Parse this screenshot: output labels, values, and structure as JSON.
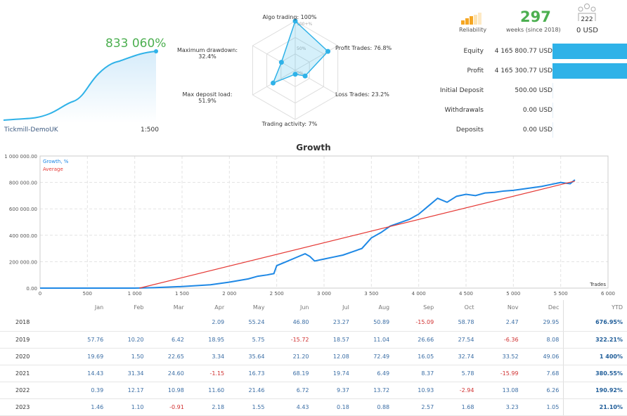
{
  "summary": {
    "growth": "833 060%",
    "broker": "Tickmill-DemoUK",
    "leverage": "1:500"
  },
  "radar": {
    "axes": [
      {
        "label": "Algo trading: 100%",
        "value": 100
      },
      {
        "label": "Profit Trades: 76.8%",
        "value": 76.8
      },
      {
        "label": "Loss Trades: 23.2%",
        "value": 23.2
      },
      {
        "label": "Trading activity: 7%",
        "value": 7
      },
      {
        "label": "Max deposit load:\n51.9%",
        "value": 51.9
      },
      {
        "label": "Maximum drawdown:\n32.4%",
        "value": 32.4
      }
    ],
    "ticks": [
      "100+%",
      "50%",
      "0%"
    ]
  },
  "header": {
    "reliability_label": "Reliability",
    "weeks": "297",
    "weeks_label": "weeks (since 2018)",
    "subscribers": "222",
    "subscribers_funds": "0 USD"
  },
  "stats": [
    {
      "label": "Equity",
      "value": "4 165 800.77 USD",
      "fill": 1
    },
    {
      "label": "Profit",
      "value": "4 165 300.77 USD",
      "fill": 1
    },
    {
      "label": "Initial Deposit",
      "value": "500.00 USD",
      "fill": 0
    },
    {
      "label": "Withdrawals",
      "value": "0.00 USD",
      "fill": 0
    },
    {
      "label": "Deposits",
      "value": "0.00 USD",
      "fill": 0
    }
  ],
  "colors": {
    "accent": "#2fb2e8",
    "green": "#4caf50",
    "negative": "#d03030",
    "average": "#e53935",
    "series": "#1e88e5"
  },
  "chart_data": {
    "type": "line",
    "title": "Growth",
    "xlabel": "Trades",
    "xlim": [
      0,
      6000
    ],
    "ylim": [
      0,
      1000000
    ],
    "grid": true,
    "legend": "top-left",
    "xticks": [
      "0",
      "500",
      "1 000",
      "1 500",
      "2 000",
      "2 500",
      "3 000",
      "3 500",
      "4 000",
      "4 500",
      "5 000",
      "5 500",
      "6 000"
    ],
    "yticks": [
      "0.00",
      "200 000.00",
      "400 000.00",
      "600 000.00",
      "800 000.00",
      "1 000 000.00"
    ],
    "series": [
      {
        "name": "Growth, %",
        "x": [
          0,
          500,
          1000,
          1200,
          1500,
          1800,
          2000,
          2200,
          2300,
          2400,
          2470,
          2500,
          2600,
          2700,
          2800,
          2850,
          2900,
          3000,
          3100,
          3200,
          3300,
          3400,
          3500,
          3600,
          3700,
          3800,
          3900,
          4000,
          4100,
          4200,
          4300,
          4400,
          4500,
          4600,
          4700,
          4800,
          4900,
          5000,
          5100,
          5200,
          5300,
          5400,
          5500,
          5600,
          5650
        ],
        "y": [
          0,
          0,
          0,
          3000,
          12000,
          25000,
          45000,
          70000,
          90000,
          100000,
          110000,
          170000,
          200000,
          230000,
          260000,
          240000,
          205000,
          220000,
          235000,
          250000,
          275000,
          300000,
          380000,
          420000,
          470000,
          495000,
          520000,
          560000,
          620000,
          680000,
          650000,
          695000,
          710000,
          700000,
          720000,
          725000,
          735000,
          740000,
          750000,
          760000,
          770000,
          785000,
          800000,
          790000,
          820000
        ]
      },
      {
        "name": "Average",
        "x": [
          1050,
          5650
        ],
        "y": [
          0,
          810000
        ]
      }
    ]
  },
  "table": {
    "headers": [
      "",
      "Jan",
      "Feb",
      "Mar",
      "Apr",
      "May",
      "Jun",
      "Jul",
      "Aug",
      "Sep",
      "Oct",
      "Nov",
      "Dec",
      "YTD"
    ],
    "rows": [
      [
        "2018",
        "",
        "",
        "",
        "2.09",
        "55.24",
        "46.80",
        "23.27",
        "50.89",
        "-15.09",
        "58.78",
        "2.47",
        "29.95",
        "676.95%"
      ],
      [
        "2019",
        "57.76",
        "10.20",
        "6.42",
        "18.95",
        "5.75",
        "-15.72",
        "18.57",
        "11.04",
        "26.66",
        "27.54",
        "-6.36",
        "8.08",
        "322.21%"
      ],
      [
        "2020",
        "19.69",
        "1.50",
        "22.65",
        "3.34",
        "35.64",
        "21.20",
        "12.08",
        "72.49",
        "16.05",
        "32.74",
        "33.52",
        "49.06",
        "1 400%"
      ],
      [
        "2021",
        "14.43",
        "31.34",
        "24.60",
        "-1.15",
        "16.73",
        "68.19",
        "19.74",
        "6.49",
        "8.37",
        "5.78",
        "-15.99",
        "7.68",
        "380.55%"
      ],
      [
        "2022",
        "0.39",
        "12.17",
        "10.98",
        "11.60",
        "21.46",
        "6.72",
        "9.37",
        "13.72",
        "10.93",
        "-2.94",
        "13.08",
        "6.26",
        "190.92%"
      ],
      [
        "2023",
        "1.46",
        "1.10",
        "-0.91",
        "2.18",
        "1.55",
        "4.43",
        "0.18",
        "0.88",
        "2.57",
        "1.68",
        "3.23",
        "1.05",
        "21.10%"
      ]
    ]
  }
}
